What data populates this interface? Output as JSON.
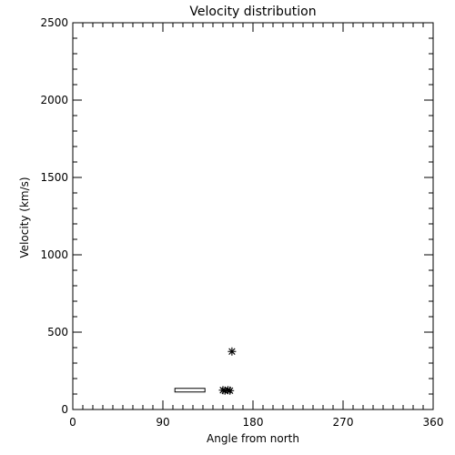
{
  "chart_data": {
    "type": "scatter",
    "title": "Velocity distribution",
    "xlabel": "Angle from north",
    "ylabel": "Velocity (km/s)",
    "xlim": [
      0,
      360
    ],
    "ylim": [
      0,
      2500
    ],
    "x_ticks": [
      "0",
      "90",
      "180",
      "270",
      "360"
    ],
    "y_ticks": [
      "0",
      "500",
      "1000",
      "1500",
      "2000",
      "2500"
    ],
    "grid": false,
    "points": [
      {
        "x": 159,
        "y": 375,
        "marker": "asterisk"
      },
      {
        "x": 150,
        "y": 125,
        "marker": "asterisk"
      },
      {
        "x": 152,
        "y": 122,
        "marker": "asterisk"
      },
      {
        "x": 155,
        "y": 125,
        "marker": "asterisk"
      },
      {
        "x": 157,
        "y": 122,
        "marker": "asterisk"
      }
    ],
    "ranges": [
      {
        "x_start": 102,
        "x_end": 132,
        "y": 125,
        "marker": "bar"
      }
    ]
  }
}
